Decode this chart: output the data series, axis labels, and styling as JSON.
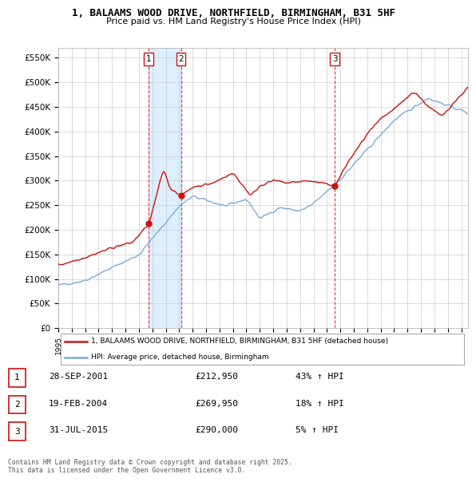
{
  "title": "1, BALAAMS WOOD DRIVE, NORTHFIELD, BIRMINGHAM, B31 5HF",
  "subtitle": "Price paid vs. HM Land Registry's House Price Index (HPI)",
  "ylim": [
    0,
    570000
  ],
  "yticks": [
    0,
    50000,
    100000,
    150000,
    200000,
    250000,
    300000,
    350000,
    400000,
    450000,
    500000,
    550000
  ],
  "ytick_labels": [
    "£0",
    "£50K",
    "£100K",
    "£150K",
    "£200K",
    "£250K",
    "£300K",
    "£350K",
    "£400K",
    "£450K",
    "£500K",
    "£550K"
  ],
  "hpi_color": "#7aabdc",
  "sale_color": "#cc1111",
  "grid_color": "#cccccc",
  "background_color": "#ffffff",
  "sale_dates": [
    2001.74,
    2004.13,
    2015.58
  ],
  "sale_prices": [
    212950,
    269950,
    290000
  ],
  "sale_labels": [
    "1",
    "2",
    "3"
  ],
  "sale_info": [
    {
      "label": "1",
      "date": "28-SEP-2001",
      "price": "£212,950",
      "hpi": "43% ↑ HPI"
    },
    {
      "label": "2",
      "date": "19-FEB-2004",
      "price": "£269,950",
      "hpi": "18% ↑ HPI"
    },
    {
      "label": "3",
      "date": "31-JUL-2015",
      "price": "£290,000",
      "hpi": "5% ↑ HPI"
    }
  ],
  "legend1_label": "1, BALAAMS WOOD DRIVE, NORTHFIELD, BIRMINGHAM, B31 5HF (detached house)",
  "legend2_label": "HPI: Average price, detached house, Birmingham",
  "footnote": "Contains HM Land Registry data © Crown copyright and database right 2025.\nThis data is licensed under the Open Government Licence v3.0.",
  "xmin": 1995,
  "xmax": 2025.5,
  "shaded_regions": [
    [
      2001.74,
      2004.13
    ]
  ],
  "shaded_color": "#ddeeff"
}
